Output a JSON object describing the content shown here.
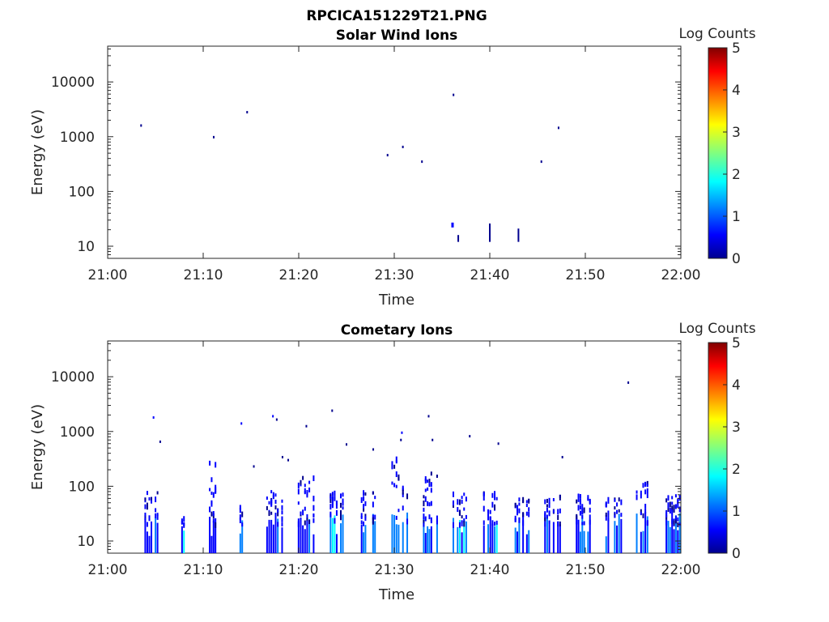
{
  "figure_title": "RPCICA151229T21.PNG",
  "colors": {
    "colormap": [
      "#00008f",
      "#0000ff",
      "#0080ff",
      "#00ffff",
      "#80ff80",
      "#ffff00",
      "#ff8000",
      "#ff0000",
      "#800000"
    ],
    "axis": "#262626"
  },
  "chart_data": [
    {
      "type": "heatmap",
      "title": "Solar Wind Ions",
      "xlabel": "Time",
      "ylabel": "Energy (eV)",
      "x_ticks": [
        "21:00",
        "21:10",
        "21:20",
        "21:30",
        "21:40",
        "21:50",
        "22:00"
      ],
      "y_ticks": [
        "10",
        "100",
        "1000",
        "10000"
      ],
      "y_scale": "log",
      "xlim": [
        "21:00",
        "22:00"
      ],
      "ylim": [
        6,
        45000
      ],
      "colorbar": {
        "label": "Log Counts",
        "ticks": [
          "0",
          "1",
          "2",
          "3",
          "4",
          "5"
        ],
        "range": [
          0,
          5
        ]
      },
      "points": [
        {
          "t": 3.5,
          "e": 1600,
          "v": 0.3
        },
        {
          "t": 11.1,
          "e": 980,
          "v": 0.3
        },
        {
          "t": 14.6,
          "e": 2800,
          "v": 0.3
        },
        {
          "t": 29.3,
          "e": 460,
          "v": 0.3
        },
        {
          "t": 30.9,
          "e": 650,
          "v": 0.3
        },
        {
          "t": 32.9,
          "e": 350,
          "v": 0.3
        },
        {
          "t": 36.2,
          "e": 5800,
          "v": 0.3
        },
        {
          "t": 45.4,
          "e": 350,
          "v": 0.3
        },
        {
          "t": 47.2,
          "e": 1450,
          "v": 0.3
        }
      ],
      "segments": [
        {
          "t": 36.1,
          "e0": 22,
          "e1": 27,
          "v": 0.4,
          "w": 2
        },
        {
          "t": 36.7,
          "e0": 12,
          "e1": 16,
          "v": 0.3,
          "w": 1
        },
        {
          "t": 40.0,
          "e0": 12,
          "e1": 26,
          "v": 0.3,
          "w": 1
        },
        {
          "t": 43.0,
          "e0": 12,
          "e1": 21,
          "v": 0.3,
          "w": 1
        }
      ]
    },
    {
      "type": "heatmap",
      "title": "Cometary Ions",
      "xlabel": "Time",
      "ylabel": "Energy (eV)",
      "x_ticks": [
        "21:00",
        "21:10",
        "21:20",
        "21:30",
        "21:40",
        "21:50",
        "22:00"
      ],
      "y_ticks": [
        "10",
        "100",
        "1000",
        "10000"
      ],
      "y_scale": "log",
      "xlim": [
        "21:00",
        "22:00"
      ],
      "ylim": [
        6,
        45000
      ],
      "colorbar": {
        "label": "Log Counts",
        "ticks": [
          "0",
          "1",
          "2",
          "3",
          "4",
          "5"
        ],
        "range": [
          0,
          5
        ]
      },
      "bursts": [
        {
          "t": 4.6,
          "w": 1.5,
          "emax": 80,
          "core": 1.0
        },
        {
          "t": 7.8,
          "w": 1.0,
          "emax": 30,
          "core": 1.2
        },
        {
          "t": 11.0,
          "w": 0.8,
          "emax": 300,
          "core": 0.6
        },
        {
          "t": 14.2,
          "w": 0.8,
          "emax": 70,
          "core": 1.3
        },
        {
          "t": 17.5,
          "w": 1.8,
          "emax": 90,
          "core": 0.8
        },
        {
          "t": 20.8,
          "w": 1.8,
          "emax": 150,
          "core": 0.8
        },
        {
          "t": 24.0,
          "w": 1.5,
          "emax": 80,
          "core": 1.3
        },
        {
          "t": 27.3,
          "w": 1.6,
          "emax": 80,
          "core": 1.0
        },
        {
          "t": 30.6,
          "w": 1.8,
          "emax": 350,
          "core": 1.3
        },
        {
          "t": 33.8,
          "w": 1.6,
          "emax": 180,
          "core": 1.0
        },
        {
          "t": 37.0,
          "w": 1.8,
          "emax": 80,
          "core": 1.4
        },
        {
          "t": 40.2,
          "w": 1.8,
          "emax": 80,
          "core": 1.4
        },
        {
          "t": 43.4,
          "w": 1.6,
          "emax": 60,
          "core": 1.0
        },
        {
          "t": 46.6,
          "w": 1.8,
          "emax": 70,
          "core": 0.9
        },
        {
          "t": 49.8,
          "w": 1.6,
          "emax": 80,
          "core": 0.8
        },
        {
          "t": 53.0,
          "w": 1.8,
          "emax": 60,
          "core": 0.9
        },
        {
          "t": 56.2,
          "w": 1.8,
          "emax": 140,
          "core": 0.9
        },
        {
          "t": 59.2,
          "w": 1.6,
          "emax": 70,
          "core": 0.8
        }
      ],
      "points": [
        {
          "t": 4.8,
          "e": 1800,
          "v": 0.4
        },
        {
          "t": 5.5,
          "e": 650,
          "v": 0.3
        },
        {
          "t": 14.0,
          "e": 1400,
          "v": 0.4
        },
        {
          "t": 17.3,
          "e": 1900,
          "v": 0.4
        },
        {
          "t": 17.7,
          "e": 1650,
          "v": 0.3
        },
        {
          "t": 20.8,
          "e": 1250,
          "v": 0.3
        },
        {
          "t": 23.5,
          "e": 2400,
          "v": 0.3
        },
        {
          "t": 30.8,
          "e": 950,
          "v": 0.4
        },
        {
          "t": 30.7,
          "e": 700,
          "v": 0.3
        },
        {
          "t": 33.6,
          "e": 1900,
          "v": 0.3
        },
        {
          "t": 34.0,
          "e": 700,
          "v": 0.3
        },
        {
          "t": 25.0,
          "e": 580,
          "v": 0.3
        },
        {
          "t": 27.8,
          "e": 470,
          "v": 0.3
        },
        {
          "t": 15.3,
          "e": 230,
          "v": 0.3
        },
        {
          "t": 18.3,
          "e": 340,
          "v": 0.3
        },
        {
          "t": 18.9,
          "e": 300,
          "v": 0.3
        },
        {
          "t": 37.9,
          "e": 820,
          "v": 0.3
        },
        {
          "t": 40.9,
          "e": 600,
          "v": 0.3
        },
        {
          "t": 47.6,
          "e": 340,
          "v": 0.3
        },
        {
          "t": 54.5,
          "e": 7800,
          "v": 0.3
        }
      ]
    }
  ]
}
